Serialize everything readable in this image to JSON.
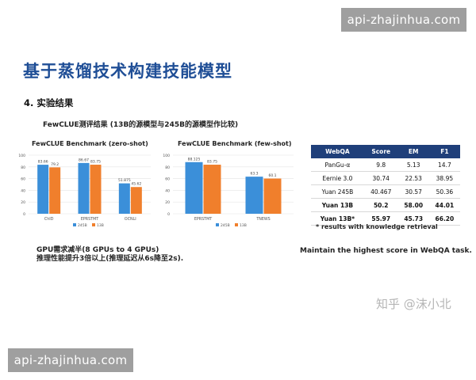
{
  "watermark_top": "api-zhajinhua.com",
  "watermark_bottom": "api-zhajinhua.com",
  "title": "基于蒸馏技术构建技能模型",
  "section": "4.  实验结果",
  "subtitle": "FewCLUE测评结果 (13B的源模型与245B的源模型作比较)",
  "colors": {
    "series_245b": "#3b8fd9",
    "series_13b": "#f07f2c",
    "table_header": "#1f3f7a",
    "title": "#1f4e96"
  },
  "chart_data": [
    {
      "type": "bar",
      "title": "FewCLUE Benchmark  (zero-shot)",
      "categories": [
        "ChID",
        "EPRSTMT",
        "OCNLI"
      ],
      "series": [
        {
          "name": "245B",
          "values": [
            83.66,
            86.67,
            51.875
          ]
        },
        {
          "name": "13B",
          "values": [
            79.2,
            83.75,
            45.62
          ]
        }
      ],
      "value_labels": [
        [
          "83.66",
          "86.67",
          "51.875"
        ],
        [
          "79.2",
          "83.75",
          "45.62"
        ]
      ],
      "yticks": [
        "0",
        "20",
        "40",
        "60",
        "80",
        "100"
      ],
      "ylim": [
        0,
        100
      ],
      "legend_position": "bottom"
    },
    {
      "type": "bar",
      "title": "FewCLUE Benchmark  (few-shot)",
      "categories": [
        "EPRSTMT",
        "TNEWS"
      ],
      "series": [
        {
          "name": "245B",
          "values": [
            88.125,
            63.3
          ]
        },
        {
          "name": "13B",
          "values": [
            83.75,
            60.1
          ]
        }
      ],
      "value_labels": [
        [
          "88.125",
          "63.3"
        ],
        [
          "83.75",
          "60.1"
        ]
      ],
      "yticks": [
        "0",
        "20",
        "40",
        "60",
        "80",
        "100"
      ],
      "ylim": [
        0,
        100
      ],
      "legend_position": "bottom"
    }
  ],
  "webqa": {
    "headers": [
      "WebQA",
      "Score",
      "EM",
      "F1"
    ],
    "rows": [
      [
        "PanGu-α",
        "9.8",
        "5.13",
        "14.7"
      ],
      [
        "Eernie 3.0",
        "30.74",
        "22.53",
        "38.95"
      ],
      [
        "Yuan 245B",
        "40.467",
        "30.57",
        "50.36"
      ],
      [
        "Yuan 13B",
        "50.2",
        "58.00",
        "44.01"
      ],
      [
        "Yuan 13B*",
        "55.97",
        "45.73",
        "66.20"
      ]
    ]
  },
  "note": "* results with knowledge retrieval",
  "gpu_line1": "GPU需求减半(8 GPUs to 4 GPUs)",
  "gpu_line2": "推理性能提升3倍以上(推理延迟从6s降至2s).",
  "maintain": "Maintain the highest score in WebQA task.",
  "zhihu": "知乎 @沫小北"
}
